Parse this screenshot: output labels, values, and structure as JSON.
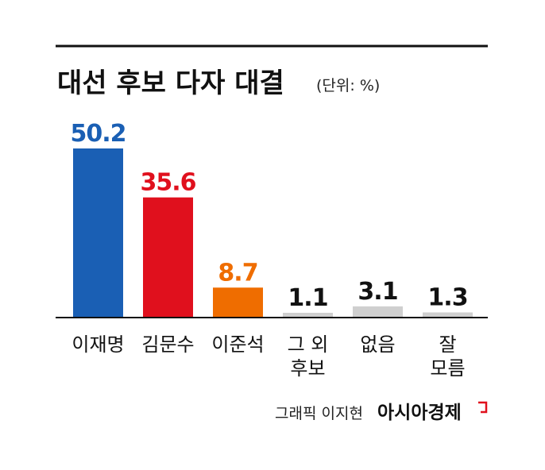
{
  "header": {
    "title": "대선 후보 다자 대결",
    "unit": "(단위: %)"
  },
  "footer": {
    "credit": "그래픽 이지현",
    "brand": "아시아경제"
  },
  "colors": {
    "top_rule": "#111111",
    "baseline": "#111111",
    "brand_mark": "#e0101d"
  },
  "chart_data": {
    "type": "bar",
    "title": "대선 후보 다자 대결",
    "unit": "(단위: %)",
    "categories": [
      [
        "이재명"
      ],
      [
        "김문수"
      ],
      [
        "이준석"
      ],
      [
        "그 외",
        "후보"
      ],
      [
        "없음"
      ],
      [
        "잘",
        "모름"
      ]
    ],
    "values": [
      50.2,
      35.6,
      8.7,
      1.1,
      3.1,
      1.3
    ],
    "value_labels": [
      "50.2",
      "35.6",
      "8.7",
      "1.1",
      "3.1",
      "1.3"
    ],
    "bar_colors": [
      "#1a5fb4",
      "#e0101d",
      "#ef6d00",
      "#cfcfcf",
      "#cfcfcf",
      "#cfcfcf"
    ],
    "label_colors": [
      "#1a5fb4",
      "#e0101d",
      "#ef6d00",
      "#111111",
      "#111111",
      "#111111"
    ],
    "ylim": [
      0,
      50.2
    ],
    "grid": false,
    "legend": "none"
  }
}
